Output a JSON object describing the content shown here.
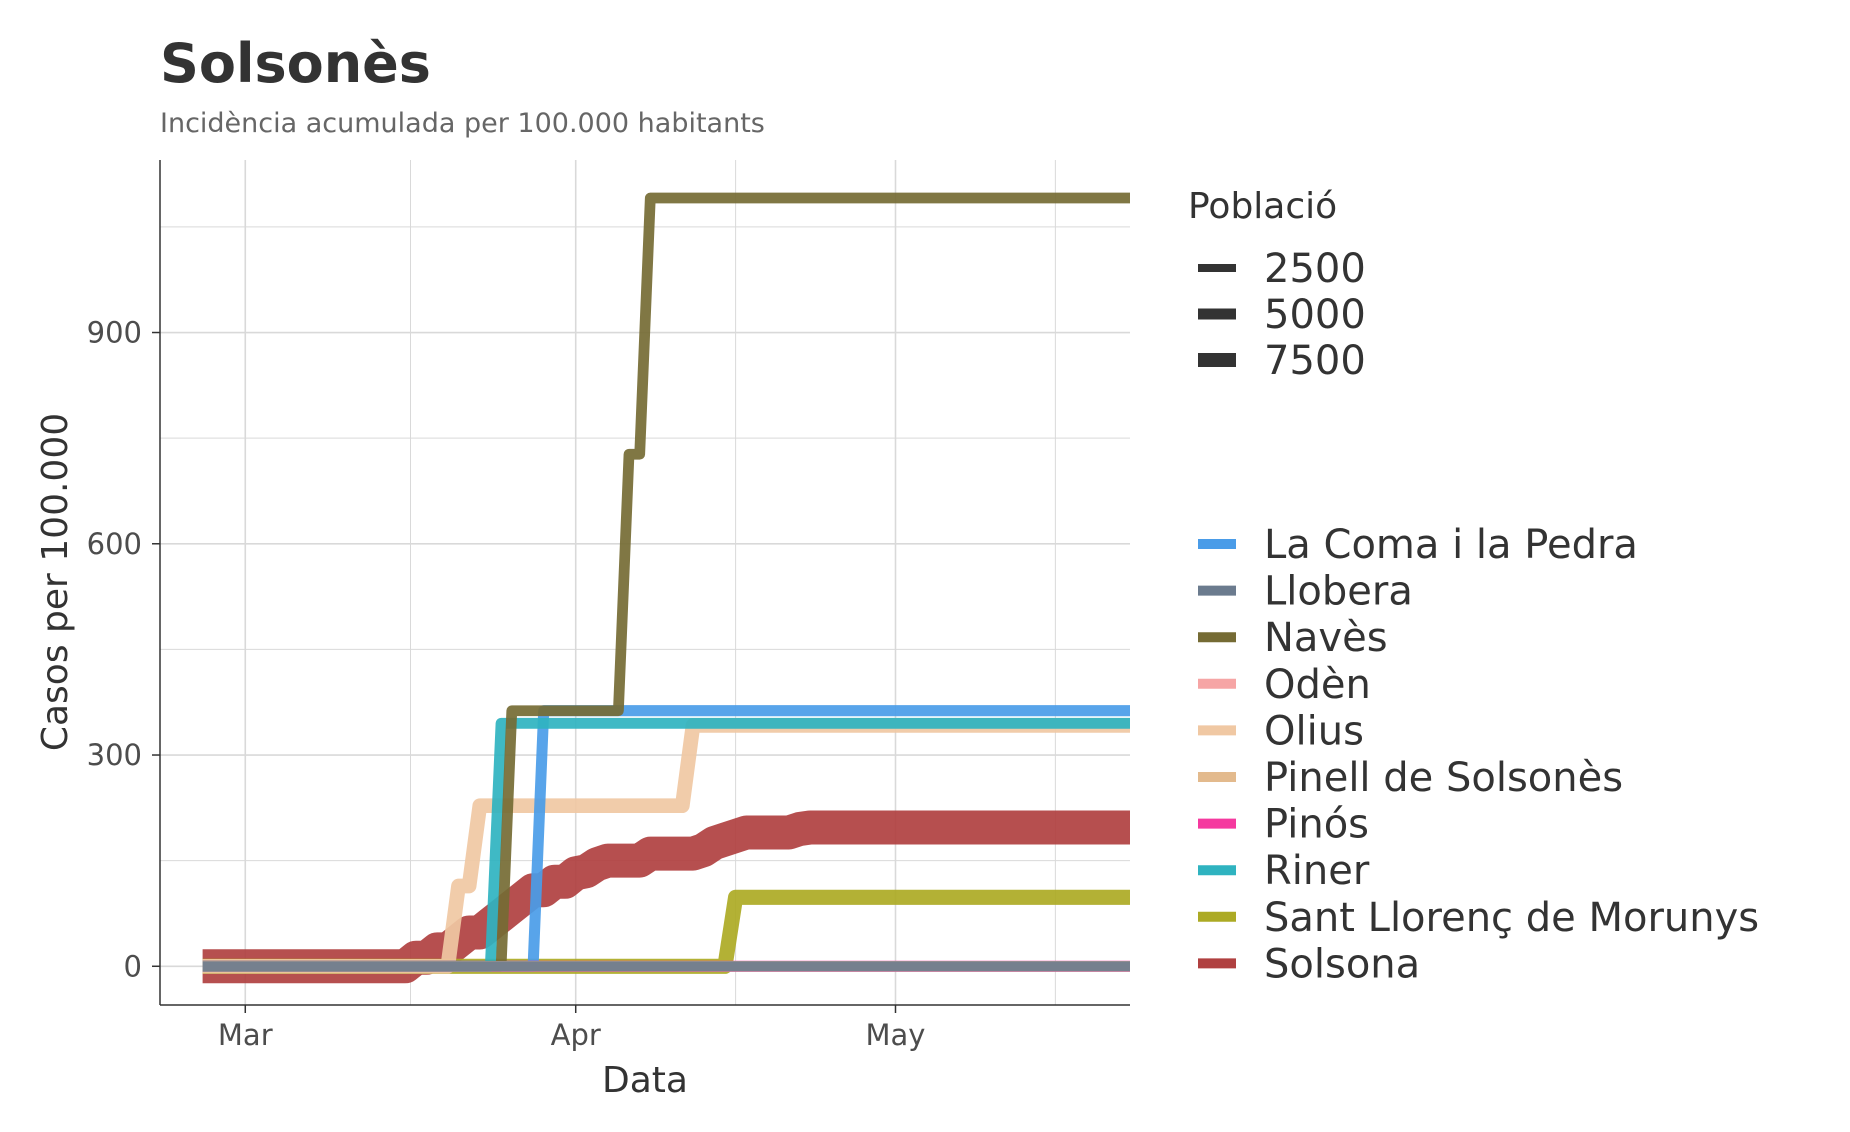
{
  "chart_data": {
    "type": "line",
    "title": "Solsonès",
    "subtitle": "Incidència acumulada per 100.000 habitants",
    "xlabel": "Data",
    "ylabel": "Casos per 100.000",
    "x_ticks": [
      {
        "label": "Mar",
        "date": "2020-03-01"
      },
      {
        "label": "Apr",
        "date": "2020-04-01"
      },
      {
        "label": "May",
        "date": "2020-05-01"
      }
    ],
    "y_ticks": [
      0,
      300,
      600,
      900
    ],
    "xlim": [
      "2020-02-22",
      "2020-05-23"
    ],
    "ylim": [
      -55,
      1145
    ],
    "grid": true,
    "legend_position": "right",
    "size_legend": {
      "title": "Població",
      "entries": [
        "2500",
        "5000",
        "7500"
      ],
      "color": "#333333"
    },
    "series": [
      {
        "name": "La Coma i la Pedra",
        "color": "#4a9ce8",
        "population": 300,
        "points": [
          [
            "2020-02-26",
            0
          ],
          [
            "2020-03-28",
            0
          ],
          [
            "2020-03-29",
            363
          ],
          [
            "2020-05-23",
            363
          ]
        ]
      },
      {
        "name": "Llobera",
        "color": "#6b7b8e",
        "population": 200,
        "points": [
          [
            "2020-02-26",
            0
          ],
          [
            "2020-05-23",
            0
          ]
        ]
      },
      {
        "name": "Navès",
        "color": "#756b34",
        "population": 270,
        "points": [
          [
            "2020-02-26",
            0
          ],
          [
            "2020-03-25",
            0
          ],
          [
            "2020-03-26",
            363
          ],
          [
            "2020-04-05",
            363
          ],
          [
            "2020-04-06",
            727
          ],
          [
            "2020-04-07",
            727
          ],
          [
            "2020-04-08",
            1091
          ],
          [
            "2020-05-23",
            1091
          ]
        ]
      },
      {
        "name": "Odèn",
        "color": "#f6a5a5",
        "population": 260,
        "points": [
          [
            "2020-02-26",
            0
          ],
          [
            "2020-05-23",
            0
          ]
        ]
      },
      {
        "name": "Olius",
        "color": "#f0c8a3",
        "population": 900,
        "points": [
          [
            "2020-02-26",
            0
          ],
          [
            "2020-03-20",
            0
          ],
          [
            "2020-03-21",
            114
          ],
          [
            "2020-03-22",
            114
          ],
          [
            "2020-03-23",
            228
          ],
          [
            "2020-04-11",
            228
          ],
          [
            "2020-04-12",
            342
          ],
          [
            "2020-05-23",
            342
          ]
        ]
      },
      {
        "name": "Pinell de Solsonès",
        "color": "#e3ba8d",
        "population": 220,
        "points": [
          [
            "2020-02-26",
            0
          ],
          [
            "2020-05-23",
            0
          ]
        ]
      },
      {
        "name": "Pinós",
        "color": "#f5399f",
        "population": 300,
        "points": [
          [
            "2020-02-26",
            0
          ],
          [
            "2020-05-23",
            0
          ]
        ]
      },
      {
        "name": "Riner",
        "color": "#2fb3c0",
        "population": 290,
        "points": [
          [
            "2020-02-26",
            0
          ],
          [
            "2020-03-24",
            0
          ],
          [
            "2020-03-25",
            345
          ],
          [
            "2020-05-23",
            345
          ]
        ]
      },
      {
        "name": "Sant Llorenç de Morunys",
        "color": "#acaa24",
        "population": 1000,
        "points": [
          [
            "2020-02-26",
            0
          ],
          [
            "2020-04-15",
            0
          ],
          [
            "2020-04-16",
            98
          ],
          [
            "2020-05-23",
            98
          ]
        ]
      },
      {
        "name": "Solsona",
        "color": "#b04040",
        "population": 9300,
        "points": [
          [
            "2020-02-26",
            0
          ],
          [
            "2020-03-16",
            0
          ],
          [
            "2020-03-17",
            12
          ],
          [
            "2020-03-18",
            12
          ],
          [
            "2020-03-19",
            24
          ],
          [
            "2020-03-20",
            24
          ],
          [
            "2020-03-21",
            36
          ],
          [
            "2020-03-22",
            48
          ],
          [
            "2020-03-23",
            48
          ],
          [
            "2020-03-24",
            60
          ],
          [
            "2020-03-25",
            72
          ],
          [
            "2020-03-26",
            84
          ],
          [
            "2020-03-27",
            96
          ],
          [
            "2020-03-28",
            108
          ],
          [
            "2020-03-29",
            108
          ],
          [
            "2020-03-30",
            120
          ],
          [
            "2020-03-31",
            120
          ],
          [
            "2020-04-01",
            132
          ],
          [
            "2020-04-02",
            135
          ],
          [
            "2020-04-03",
            145
          ],
          [
            "2020-04-04",
            150
          ],
          [
            "2020-04-05",
            150
          ],
          [
            "2020-04-06",
            150
          ],
          [
            "2020-04-07",
            150
          ],
          [
            "2020-04-08",
            160
          ],
          [
            "2020-04-12",
            160
          ],
          [
            "2020-04-13",
            165
          ],
          [
            "2020-04-14",
            175
          ],
          [
            "2020-04-15",
            180
          ],
          [
            "2020-04-16",
            185
          ],
          [
            "2020-04-17",
            190
          ],
          [
            "2020-04-21",
            190
          ],
          [
            "2020-04-22",
            195
          ],
          [
            "2020-04-23",
            197
          ],
          [
            "2020-05-23",
            197
          ]
        ]
      }
    ]
  }
}
